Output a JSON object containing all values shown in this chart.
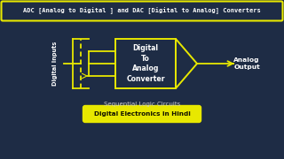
{
  "bg_color": "#1e2c45",
  "title_text": "ADC [Analog to Digital ] and DAC [Digital to Analog] Converters",
  "title_box_color": "#e8e800",
  "title_text_color": "#ffffff",
  "dac_box_label": "Digital\nTo\nAnalog\nConverter",
  "dac_label_color": "#ffffff",
  "digital_inputs_label": "Digital Inputs",
  "analog_output_label": "Analog\nOutput",
  "bottom_label1": "Sequential Logic Circuits",
  "bottom_label2": "Digital Electronics in Hindi",
  "bottom_label1_color": "#cccccc",
  "bottom_label2_color": "#111100",
  "bottom_label2_bg": "#e8e800",
  "line_color": "#e8e800",
  "num_input_lines": 3
}
